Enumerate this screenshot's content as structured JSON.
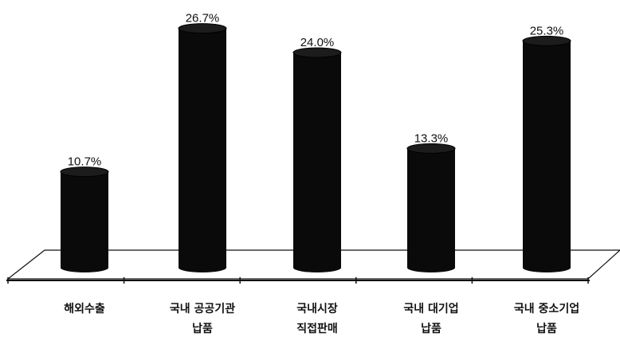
{
  "chart_data": {
    "type": "bar",
    "style": "3d-cylinder",
    "categories": [
      [
        "해외수출"
      ],
      [
        "국내 공공기관",
        "납품"
      ],
      [
        "국내시장",
        "직접판매"
      ],
      [
        "국내 대기업",
        "납품"
      ],
      [
        "국내 중소기업",
        "납품"
      ]
    ],
    "values": [
      10.7,
      26.7,
      24.0,
      13.3,
      25.3
    ],
    "value_labels": [
      "10.7%",
      "26.7%",
      "24.0%",
      "13.3%",
      "25.3%"
    ],
    "ylim": [
      0,
      28
    ],
    "grid": false,
    "legend": "none",
    "colors": {
      "bar": "#0a0a0a",
      "floor": "#ffffff",
      "axis": "#111111"
    }
  }
}
